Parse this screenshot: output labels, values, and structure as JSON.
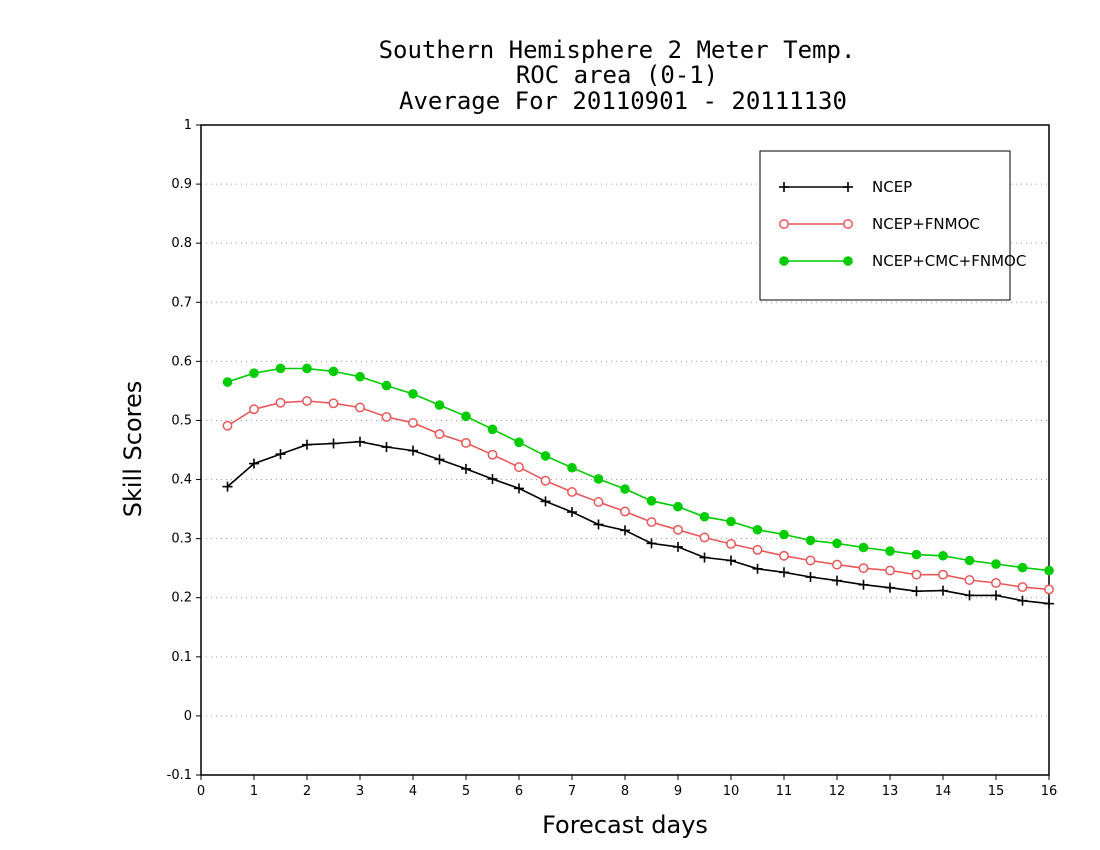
{
  "chart_data": {
    "type": "line",
    "title_lines": [
      "Southern Hemisphere 2 Meter Temp.",
      "ROC area (0-1)",
      "Average For 20110901 - 20111130"
    ],
    "xlabel": "Forecast days",
    "ylabel": "Skill Scores",
    "xlim": [
      0,
      16
    ],
    "ylim": [
      -0.1,
      1
    ],
    "xticks": [
      0,
      1,
      2,
      3,
      4,
      5,
      6,
      7,
      8,
      9,
      10,
      11,
      12,
      13,
      14,
      15,
      16
    ],
    "xtick_labels": [
      "0",
      "1",
      "2",
      "3",
      "4",
      "5",
      "6",
      "7",
      "8",
      "9",
      "10",
      "11",
      "12",
      "13",
      "14",
      "15",
      "16"
    ],
    "yticks": [
      -0.1,
      0,
      0.1,
      0.2,
      0.3,
      0.4,
      0.5,
      0.6,
      0.7,
      0.8,
      0.9,
      1
    ],
    "ytick_labels": [
      "-0.1",
      "0",
      "0.1",
      "0.2",
      "0.3",
      "0.4",
      "0.5",
      "0.6",
      "0.7",
      "0.8",
      "0.9",
      "1"
    ],
    "grid": "horizontal dotted",
    "legend_position": "top-right",
    "x": [
      0.5,
      1,
      1.5,
      2,
      2.5,
      3,
      3.5,
      4,
      4.5,
      5,
      5.5,
      6,
      6.5,
      7,
      7.5,
      8,
      8.5,
      9,
      9.5,
      10,
      10.5,
      11,
      11.5,
      12,
      12.5,
      13,
      13.5,
      14,
      14.5,
      15,
      15.5,
      16
    ],
    "series": [
      {
        "name": "NCEP",
        "color": "#000000",
        "marker": "plus",
        "values": [
          0.388,
          0.427,
          0.443,
          0.459,
          0.461,
          0.464,
          0.455,
          0.449,
          0.434,
          0.418,
          0.401,
          0.385,
          0.363,
          0.345,
          0.324,
          0.314,
          0.292,
          0.286,
          0.268,
          0.263,
          0.249,
          0.243,
          0.235,
          0.229,
          0.222,
          0.217,
          0.211,
          0.212,
          0.204,
          0.204,
          0.195,
          0.19
        ]
      },
      {
        "name": "NCEP+FNMOC",
        "color": "#e8585a",
        "marker": "open-circle",
        "values": [
          0.491,
          0.519,
          0.53,
          0.533,
          0.529,
          0.522,
          0.506,
          0.496,
          0.477,
          0.462,
          0.442,
          0.421,
          0.398,
          0.379,
          0.362,
          0.346,
          0.328,
          0.315,
          0.302,
          0.291,
          0.281,
          0.271,
          0.263,
          0.256,
          0.25,
          0.246,
          0.239,
          0.239,
          0.23,
          0.225,
          0.218,
          0.214
        ]
      },
      {
        "name": "NCEP+CMC+FNMOC",
        "color": "#00cc00",
        "marker": "filled-circle",
        "values": [
          0.565,
          0.58,
          0.588,
          0.588,
          0.583,
          0.574,
          0.559,
          0.545,
          0.526,
          0.507,
          0.485,
          0.463,
          0.44,
          0.42,
          0.401,
          0.384,
          0.364,
          0.354,
          0.337,
          0.329,
          0.315,
          0.307,
          0.297,
          0.292,
          0.285,
          0.279,
          0.273,
          0.271,
          0.263,
          0.257,
          0.251,
          0.246
        ]
      }
    ]
  }
}
